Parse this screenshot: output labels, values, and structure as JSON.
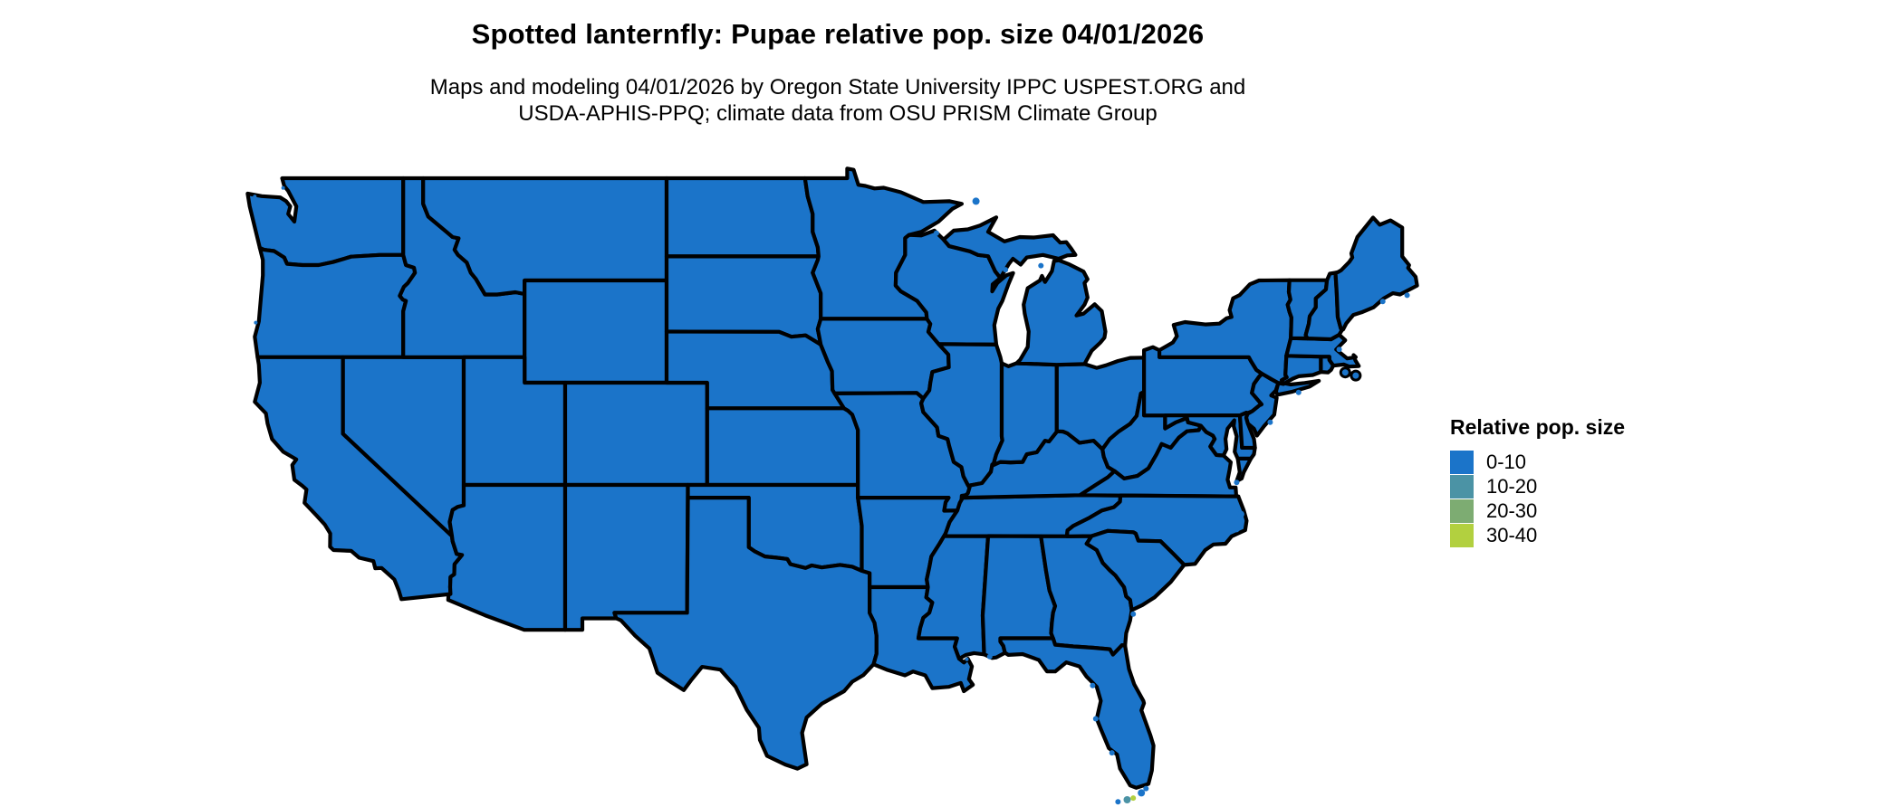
{
  "header": {
    "title": "Spotted lanternfly: Pupae relative pop. size 04/01/2026",
    "subtitle_line1": "Maps and modeling 04/01/2026 by Oregon State University IPPC USPEST.ORG and",
    "subtitle_line2": "USDA-APHIS-PPQ; climate data from OSU PRISM Climate Group"
  },
  "legend": {
    "title": "Relative pop. size",
    "items": [
      {
        "label": "0-10",
        "color": "#1b74c9"
      },
      {
        "label": "10-20",
        "color": "#4b93a5"
      },
      {
        "label": "20-30",
        "color": "#7dac72"
      },
      {
        "label": "30-40",
        "color": "#b2d03f"
      }
    ]
  },
  "map": {
    "type": "choropleth",
    "region": "contiguous United States",
    "all_states_class": "0-10",
    "state_fill_color": "#1b74c9",
    "border_color": "#000000",
    "water_color": "#ffffff"
  }
}
